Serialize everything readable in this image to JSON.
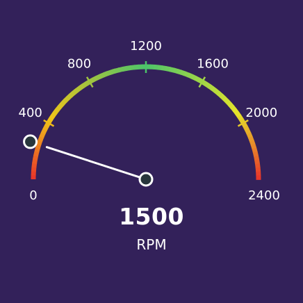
{
  "gauge": {
    "value": 1500,
    "value_text": "1500",
    "unit": "RPM",
    "min": 0,
    "max": 2400,
    "handle_value": 240,
    "ticks": [
      {
        "value": 0,
        "label": "0"
      },
      {
        "value": 400,
        "label": "400"
      },
      {
        "value": 800,
        "label": "800"
      },
      {
        "value": 1200,
        "label": "1200"
      },
      {
        "value": 1600,
        "label": "1600"
      },
      {
        "value": 2000,
        "label": "2000"
      },
      {
        "value": 2400,
        "label": "2400"
      }
    ],
    "colors": {
      "background": "#33215a",
      "arc_low": "#e8322a",
      "arc_mid_low": "#f0c419",
      "arc_mid": "#4cc46a",
      "arc_mid_high": "#e5e52a",
      "arc_high": "#e8322a",
      "needle": "#ffffff",
      "knob_fill": "#28363c",
      "knob_stroke": "#ffffff"
    }
  }
}
